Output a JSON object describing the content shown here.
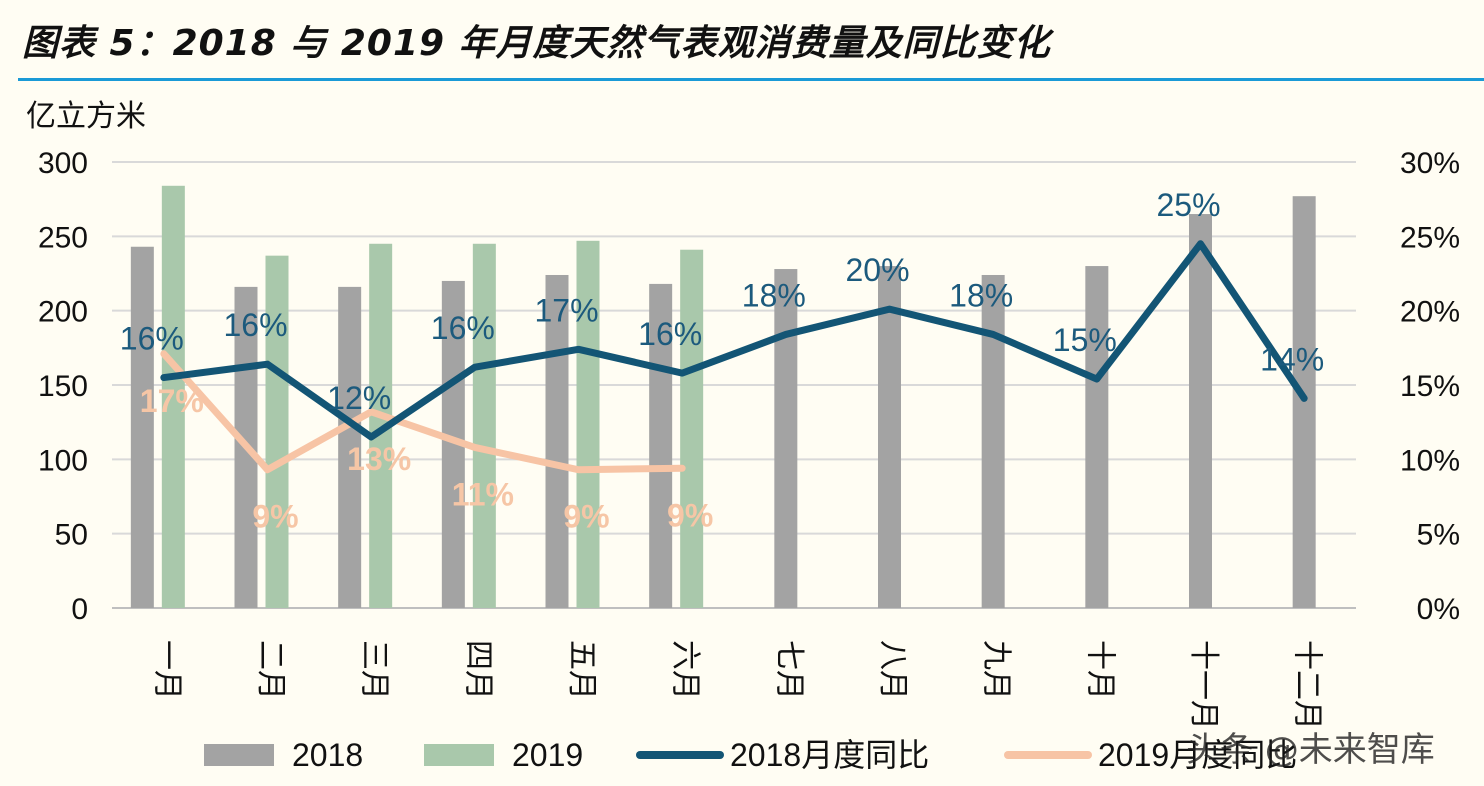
{
  "title": "图表 5：2018 与 2019 年月度天然气表观消费量及同比变化",
  "watermark": "头条 @未来智库",
  "colors": {
    "bar_2018": "#a3a3a3",
    "bar_2019": "#a9c8ab",
    "line_2018": "#135575",
    "line_2019": "#f7c4a5",
    "grid": "#d9d9d9",
    "title_rule": "#1a9ad6"
  },
  "chart_data": {
    "type": "bar+line",
    "left_axis": {
      "unit_label": "亿立方米",
      "ylim": [
        0,
        300
      ],
      "ticks": [
        0,
        50,
        100,
        150,
        200,
        250,
        300
      ]
    },
    "right_axis": {
      "ylim": [
        0,
        30
      ],
      "ticks": [
        0,
        5,
        10,
        15,
        20,
        25,
        30
      ],
      "tick_labels": [
        "0%",
        "5%",
        "10%",
        "15%",
        "20%",
        "25%",
        "30%"
      ]
    },
    "categories": [
      "一月",
      "二月",
      "三月",
      "四月",
      "五月",
      "六月",
      "七月",
      "八月",
      "九月",
      "十月",
      "十一月",
      "十二月"
    ],
    "bar_series": [
      {
        "name": "2018",
        "values": [
          243,
          216,
          216,
          220,
          224,
          218,
          228,
          230,
          224,
          230,
          265,
          277
        ]
      },
      {
        "name": "2019",
        "values": [
          284,
          237,
          245,
          245,
          247,
          241,
          null,
          null,
          null,
          null,
          null,
          null
        ]
      }
    ],
    "line_series": [
      {
        "name": "2018月度同比",
        "values": [
          15.5,
          16.4,
          11.5,
          16.2,
          17.4,
          15.8,
          18.4,
          20.1,
          18.4,
          15.4,
          24.5,
          14.1
        ],
        "labels": [
          "16%",
          "16%",
          "12%",
          "16%",
          "17%",
          "16%",
          "18%",
          "20%",
          "18%",
          "15%",
          "25%",
          "14%"
        ]
      },
      {
        "name": "2019月度同比",
        "values": [
          17.1,
          9.3,
          13.2,
          10.8,
          9.3,
          9.4,
          null,
          null,
          null,
          null,
          null,
          null
        ],
        "labels": [
          "17%",
          "9%",
          "13%",
          "11%",
          "9%",
          "9%",
          null,
          null,
          null,
          null,
          null,
          null
        ]
      }
    ],
    "legend": [
      "2018",
      "2019",
      "2018月度同比",
      "2019月度同比"
    ],
    "legend_position": "bottom",
    "grid": true
  }
}
